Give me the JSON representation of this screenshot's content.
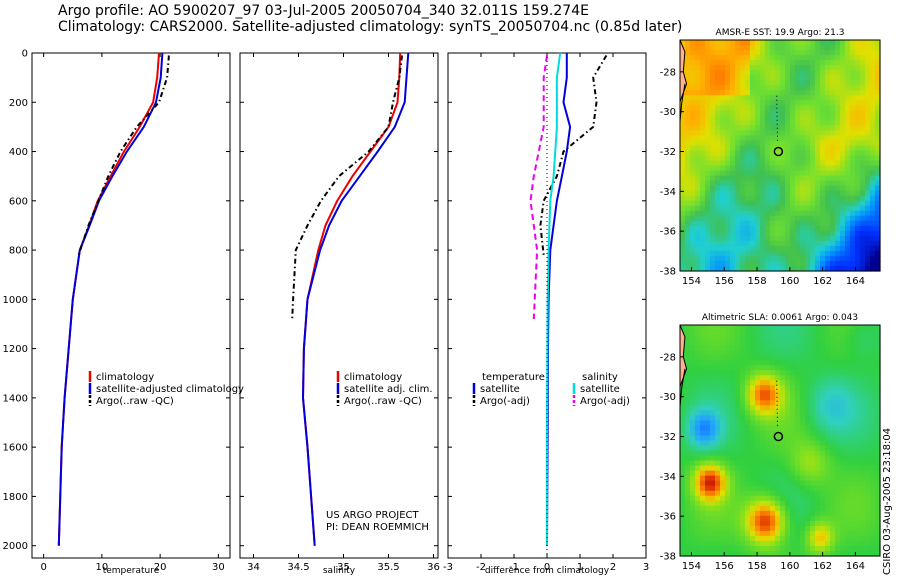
{
  "header": {
    "line1": "Argo profile: AO 5900207_97 03-Jul-2005 20050704_340 32.011S 159.274E",
    "line2": "Climatology: CARS2000. Satellite-adjusted climatology: synTS_20050704.nc (0.85d later)"
  },
  "stamp": "CSIRO 03-Aug-2005 23:18:04",
  "colors": {
    "clim": "#ee0000",
    "sat": "#0000dd",
    "argo": "#000000",
    "sal_sat": "#00dddd",
    "sal_argo": "#ee00ee"
  },
  "chart_data": [
    {
      "type": "line",
      "xlabel": "temperature",
      "ylabel": "",
      "xlim": [
        -2,
        32
      ],
      "ylim": [
        2050,
        0
      ],
      "xticks": [
        0,
        10,
        20,
        30
      ],
      "yticks": [
        0,
        200,
        400,
        600,
        800,
        1000,
        1200,
        1400,
        1600,
        1800,
        2000
      ],
      "series": [
        {
          "name": "climatology",
          "color": "#ee0000",
          "dash": "",
          "x": [
            19.8,
            19.5,
            18.8,
            16.5,
            13.8,
            11.5,
            9.3,
            7.8,
            6.2,
            5.0,
            4.3,
            3.6,
            3.1,
            2.6
          ],
          "y": [
            0,
            100,
            200,
            300,
            400,
            500,
            600,
            700,
            800,
            1000,
            1200,
            1400,
            1600,
            2000
          ]
        },
        {
          "name": "satellite-adjusted climatology",
          "color": "#0000dd",
          "dash": "",
          "x": [
            20.4,
            20.1,
            19.3,
            17.2,
            14.3,
            11.8,
            9.5,
            7.9,
            6.2,
            5.0,
            4.3,
            3.6,
            3.1,
            2.6
          ],
          "y": [
            0,
            100,
            200,
            300,
            400,
            500,
            600,
            700,
            800,
            1000,
            1200,
            1400,
            1600,
            2000
          ]
        },
        {
          "name": "Argo(..raw -QC)",
          "color": "#000000",
          "dash": "5,3,1.5,3",
          "x": [
            21.5,
            21.2,
            19.8,
            16.0,
            13.2,
            11.1,
            9.4,
            7.7,
            6.0
          ],
          "y": [
            10,
            100,
            200,
            300,
            400,
            500,
            600,
            700,
            820
          ]
        }
      ],
      "legend": [
        "climatology",
        "satellite-adjusted climatology",
        "Argo(..raw -QC)"
      ]
    },
    {
      "type": "line",
      "xlabel": "salinity",
      "xlim": [
        33.85,
        36.05
      ],
      "ylim": [
        2050,
        0
      ],
      "xticks": [
        34,
        34.5,
        35,
        35.5,
        36
      ],
      "series": [
        {
          "name": "climatology",
          "color": "#ee0000",
          "dash": "",
          "x": [
            35.63,
            35.62,
            35.6,
            35.5,
            35.3,
            35.1,
            34.93,
            34.8,
            34.72,
            34.6,
            34.56,
            34.55,
            34.6,
            34.68
          ],
          "y": [
            0,
            100,
            200,
            300,
            400,
            500,
            600,
            700,
            800,
            1000,
            1200,
            1400,
            1600,
            2000
          ]
        },
        {
          "name": "satellite adj. clim.",
          "color": "#0000dd",
          "dash": "",
          "x": [
            35.72,
            35.7,
            35.68,
            35.57,
            35.38,
            35.18,
            34.98,
            34.84,
            34.74,
            34.6,
            34.56,
            34.55,
            34.6,
            34.68
          ],
          "y": [
            0,
            100,
            200,
            300,
            400,
            500,
            600,
            700,
            800,
            1000,
            1200,
            1400,
            1600,
            2000
          ]
        },
        {
          "name": "Argo(..raw -QC)",
          "color": "#000000",
          "dash": "5,3,1.5,3",
          "x": [
            35.65,
            35.62,
            35.55,
            35.5,
            35.28,
            34.95,
            34.75,
            34.6,
            34.47,
            34.44,
            34.43
          ],
          "y": [
            10,
            100,
            200,
            300,
            400,
            500,
            600,
            700,
            800,
            1000,
            1080
          ]
        }
      ],
      "legend": [
        "climatology",
        "satellite adj. clim.",
        "Argo(..raw -QC)"
      ],
      "credit1": "US ARGO PROJECT",
      "credit2": "PI: DEAN ROEMMICH"
    },
    {
      "type": "line",
      "xlabel": "difference from climatology",
      "xlim": [
        -3,
        3
      ],
      "ylim": [
        2050,
        0
      ],
      "xticks": [
        -3,
        -2,
        -1,
        0,
        1,
        2,
        3
      ],
      "series": [
        {
          "name": "temperature satellite",
          "color": "#0000dd",
          "dash": "",
          "x": [
            0.6,
            0.6,
            0.5,
            0.7,
            0.6,
            0.45,
            0.3,
            0.2,
            0.1,
            0.05,
            0.03,
            0.02,
            0.0
          ],
          "y": [
            0,
            100,
            200,
            300,
            400,
            500,
            600,
            700,
            800,
            1000,
            1200,
            1500,
            2000
          ]
        },
        {
          "name": "temperature Argo(-adj)",
          "color": "#000000",
          "dash": "5,3,1.5,3",
          "x": [
            1.8,
            1.4,
            1.5,
            1.4,
            0.5,
            0.3,
            -0.1,
            -0.2,
            -0.1
          ],
          "y": [
            10,
            100,
            200,
            300,
            400,
            500,
            600,
            700,
            820
          ]
        },
        {
          "name": "salinity satellite",
          "color": "#00dddd",
          "dash": "",
          "x": [
            0.4,
            0.3,
            0.3,
            0.2,
            0.1,
            0.05,
            0.02,
            0.0,
            0.0
          ],
          "y": [
            0,
            100,
            300,
            500,
            600,
            800,
            1000,
            1500,
            2000
          ]
        },
        {
          "name": "salinity Argo(-adj)",
          "color": "#ee00ee",
          "dash": "6,4",
          "x": [
            0.0,
            -0.1,
            -0.1,
            -0.4,
            -0.5,
            -0.3,
            -0.4
          ],
          "y": [
            10,
            100,
            300,
            500,
            600,
            800,
            1080
          ]
        }
      ],
      "legend_left": {
        "title": "temperature",
        "entries": [
          "satellite",
          "Argo(-adj)"
        ]
      },
      "legend_right": {
        "title": "salinity",
        "entries": [
          "satellite",
          "Argo(-adj)"
        ]
      }
    },
    {
      "type": "heatmap",
      "title": "AMSR-E SST: 19.9 Argo: 21.3",
      "xlim": [
        153.3,
        165.5
      ],
      "ylim": [
        -38,
        -26.4
      ],
      "xticks": [
        154,
        156,
        158,
        160,
        162,
        164
      ],
      "yticks": [
        -28,
        -30,
        -32,
        -34,
        -36,
        -38
      ],
      "profile_point": [
        159.3,
        -32.0
      ]
    },
    {
      "type": "heatmap",
      "title": "Altimetric SLA: 0.0061 Argo: 0.043",
      "xlim": [
        153.3,
        165.5
      ],
      "ylim": [
        -38,
        -26.4
      ],
      "xticks": [
        154,
        156,
        158,
        160,
        162,
        164
      ],
      "yticks": [
        -28,
        -30,
        -32,
        -34,
        -36,
        -38
      ],
      "profile_point": [
        159.3,
        -32.0
      ]
    }
  ]
}
